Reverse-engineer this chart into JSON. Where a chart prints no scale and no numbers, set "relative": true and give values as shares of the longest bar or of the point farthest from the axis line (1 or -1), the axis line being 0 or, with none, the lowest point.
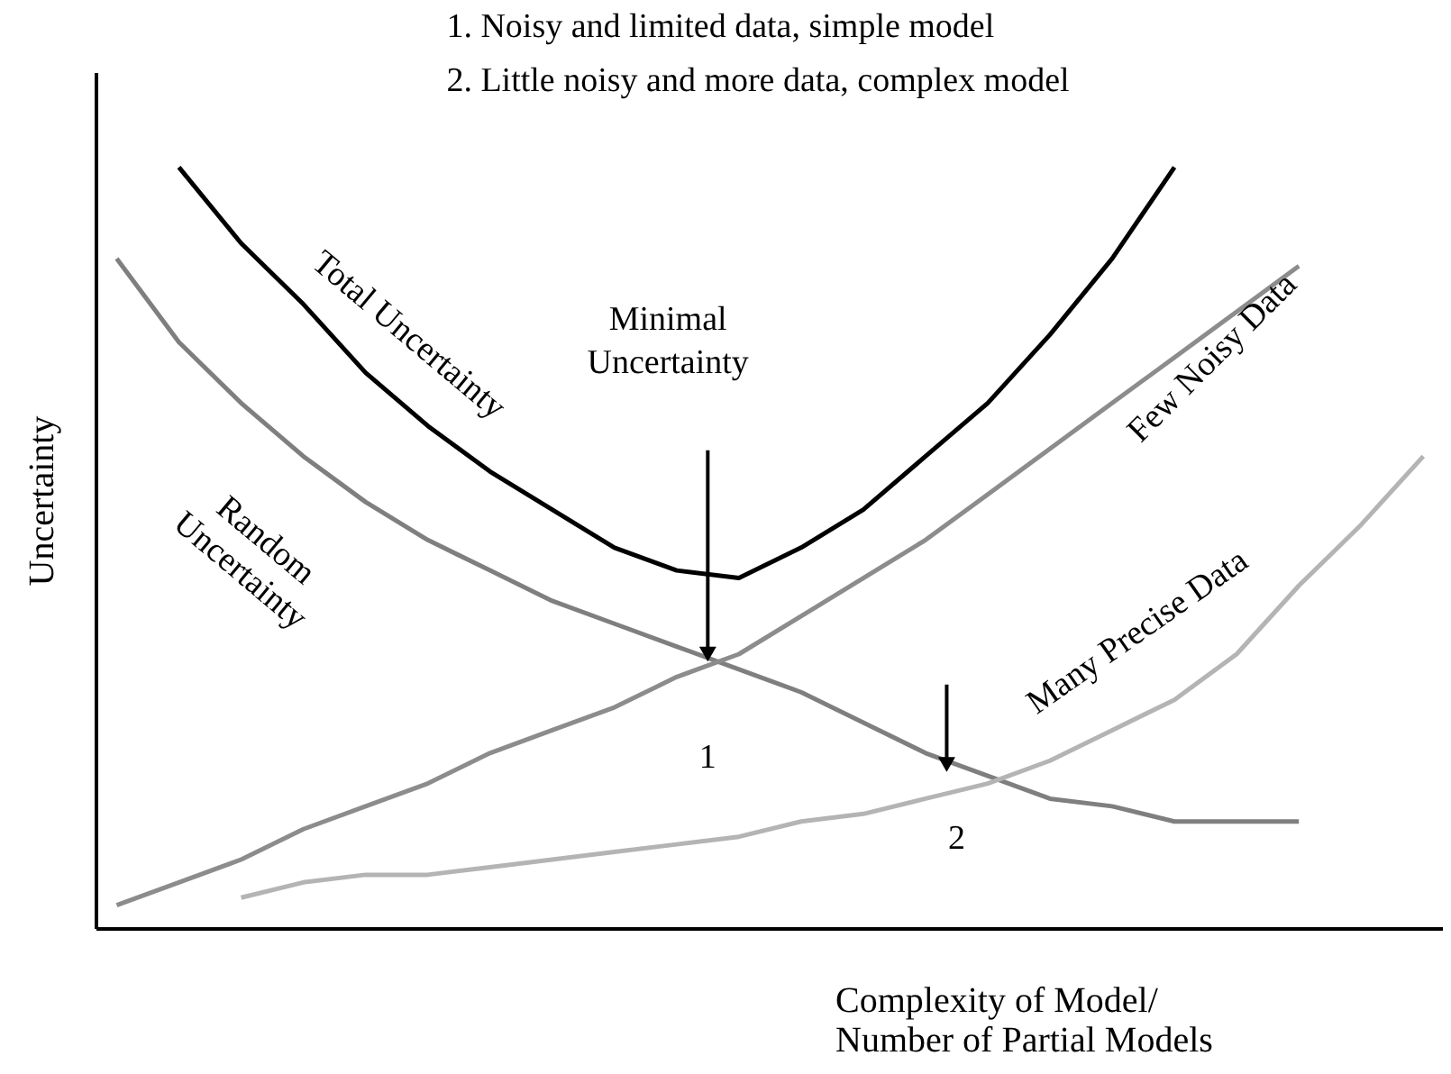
{
  "chart_data": {
    "type": "line",
    "relative": true,
    "xlabel": "Complexity of Model/\nNumber of Partial Models",
    "ylabel": "Uncertainty",
    "categories": [
      null,
      null,
      null,
      null,
      null,
      null,
      null,
      null,
      null,
      null,
      null,
      null,
      null,
      null,
      null,
      null,
      null,
      null,
      null,
      null,
      null,
      null
    ],
    "series": [
      {
        "name": "Total Uncertainty",
        "color": "#000000",
        "values": [
          null,
          1.0,
          0.9,
          0.82,
          0.73,
          0.66,
          0.6,
          0.55,
          0.5,
          0.47,
          0.46,
          0.5,
          0.55,
          0.62,
          0.69,
          0.78,
          0.88,
          1.0,
          null,
          null,
          null,
          null
        ]
      },
      {
        "name": "Random\nUncertainty",
        "color": "#7f7f7f",
        "values": [
          0.88,
          0.77,
          0.69,
          0.62,
          0.56,
          0.51,
          0.47,
          0.43,
          0.4,
          0.37,
          0.34,
          0.31,
          0.27,
          0.23,
          0.2,
          0.17,
          0.16,
          0.14,
          0.14,
          0.14,
          null,
          null
        ]
      },
      {
        "name": "Few Noisy Data",
        "color": "#8c8c8c",
        "values": [
          0.03,
          0.06,
          0.09,
          0.13,
          0.16,
          0.19,
          0.23,
          0.26,
          0.29,
          0.33,
          0.36,
          0.41,
          0.46,
          0.51,
          0.57,
          0.63,
          0.69,
          0.75,
          0.81,
          0.87,
          null,
          null
        ]
      },
      {
        "name": "Many Precise Data",
        "color": "#b4b4b4",
        "values": [
          null,
          null,
          0.04,
          0.06,
          0.07,
          0.07,
          0.08,
          0.09,
          0.1,
          0.11,
          0.12,
          0.14,
          0.15,
          0.17,
          0.19,
          0.22,
          0.26,
          0.3,
          0.36,
          0.45,
          0.53,
          0.62
        ]
      }
    ],
    "annotations": [
      "1.  Noisy and limited data, simple model",
      "2.  Little noisy and more data, complex model",
      "Minimal\nUncertainty",
      "1",
      "2"
    ],
    "legend": false,
    "grid": false,
    "line_style": "solid",
    "marker": "none"
  }
}
